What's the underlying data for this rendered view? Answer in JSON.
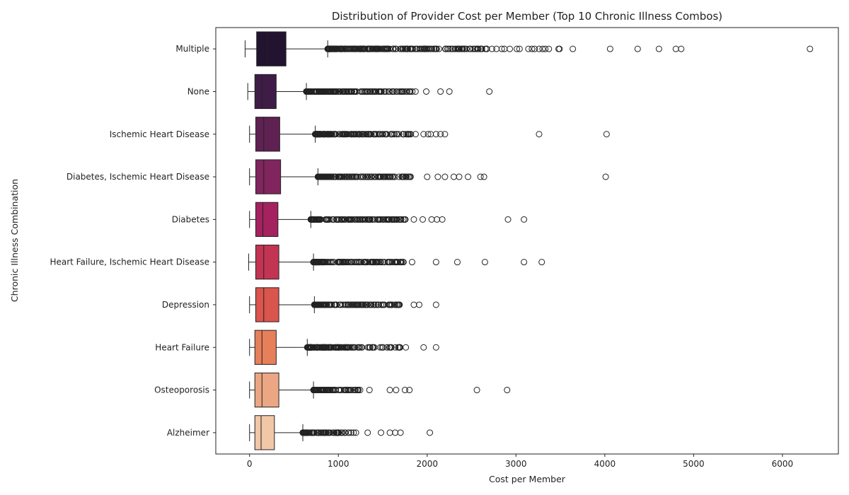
{
  "chart_data": {
    "type": "boxplot",
    "orientation": "horizontal",
    "title": "Distribution of Provider Cost per Member (Top 10 Chronic Illness Combos)",
    "xlabel": "Cost per Member",
    "ylabel": "Chronic Illness Combination",
    "xlim": [
      -380,
      6630
    ],
    "xticks": [
      0,
      1000,
      2000,
      3000,
      4000,
      5000,
      6000
    ],
    "grid": false,
    "series": [
      {
        "name": "Multiple",
        "color": "#221331",
        "whisker_low": -50,
        "q1": 80,
        "median": 200,
        "q3": 410,
        "whisker_high": 880,
        "outlier_range": [
          880,
          2700
        ],
        "outliers": [
          2730,
          2780,
          2840,
          2870,
          2930,
          3010,
          3040,
          3140,
          3180,
          3210,
          3260,
          3300,
          3330,
          3370,
          3480,
          3490,
          3640,
          4060,
          4370,
          4610,
          4800,
          4860,
          6310
        ]
      },
      {
        "name": "None",
        "color": "#3f1c47",
        "whisker_low": -20,
        "q1": 60,
        "median": 140,
        "q3": 300,
        "whisker_high": 640,
        "outlier_range": [
          640,
          1880
        ],
        "outliers": [
          1990,
          2150,
          2250,
          2700
        ]
      },
      {
        "name": "Ischemic Heart Disease",
        "color": "#5f2152",
        "whisker_low": 0,
        "q1": 70,
        "median": 160,
        "q3": 340,
        "whisker_high": 740,
        "outlier_range": [
          740,
          1820
        ],
        "outliers": [
          1870,
          1960,
          2010,
          2040,
          2100,
          2150,
          2200,
          3260,
          4020
        ]
      },
      {
        "name": "Diabetes, Ischemic Heart Disease",
        "color": "#80255d",
        "whisker_low": 0,
        "q1": 70,
        "median": 160,
        "q3": 350,
        "whisker_high": 770,
        "outlier_range": [
          770,
          1860
        ],
        "outliers": [
          2000,
          2120,
          2200,
          2300,
          2360,
          2460,
          2600,
          2640,
          4010
        ]
      },
      {
        "name": "Diabetes",
        "color": "#a4225f",
        "whisker_low": 0,
        "q1": 70,
        "median": 150,
        "q3": 320,
        "whisker_high": 690,
        "outlier_range": [
          690,
          1770
        ],
        "outliers": [
          1850,
          1950,
          2050,
          2110,
          2170,
          2910,
          3090
        ]
      },
      {
        "name": "Heart Failure, Ischemic Heart Disease",
        "color": "#c33453",
        "whisker_low": -10,
        "q1": 70,
        "median": 160,
        "q3": 330,
        "whisker_high": 720,
        "outlier_range": [
          720,
          1760
        ],
        "outliers": [
          1830,
          2100,
          2340,
          2650,
          3090,
          3290
        ]
      },
      {
        "name": "Depression",
        "color": "#d9554d",
        "whisker_low": 0,
        "q1": 70,
        "median": 160,
        "q3": 330,
        "whisker_high": 730,
        "outlier_range": [
          730,
          1710
        ],
        "outliers": [
          1850,
          1910,
          2100
        ]
      },
      {
        "name": "Heart Failure",
        "color": "#e77f5b",
        "whisker_low": 0,
        "q1": 60,
        "median": 140,
        "q3": 300,
        "whisker_high": 650,
        "outlier_range": [
          650,
          1710
        ],
        "outliers": [
          1760,
          1960,
          2100
        ]
      },
      {
        "name": "Osteoporosis",
        "color": "#eba683",
        "whisker_low": 0,
        "q1": 60,
        "median": 140,
        "q3": 330,
        "whisker_high": 720,
        "outlier_range": [
          720,
          1250
        ],
        "outliers": [
          1350,
          1580,
          1650,
          1750,
          1800,
          2560,
          2900
        ]
      },
      {
        "name": "Alzheimer",
        "color": "#f1c7a8",
        "whisker_low": 0,
        "q1": 60,
        "median": 130,
        "q3": 280,
        "whisker_high": 600,
        "outlier_range": [
          600,
          1200
        ],
        "outliers": [
          1330,
          1480,
          1580,
          1640,
          1700,
          2030
        ]
      }
    ]
  }
}
